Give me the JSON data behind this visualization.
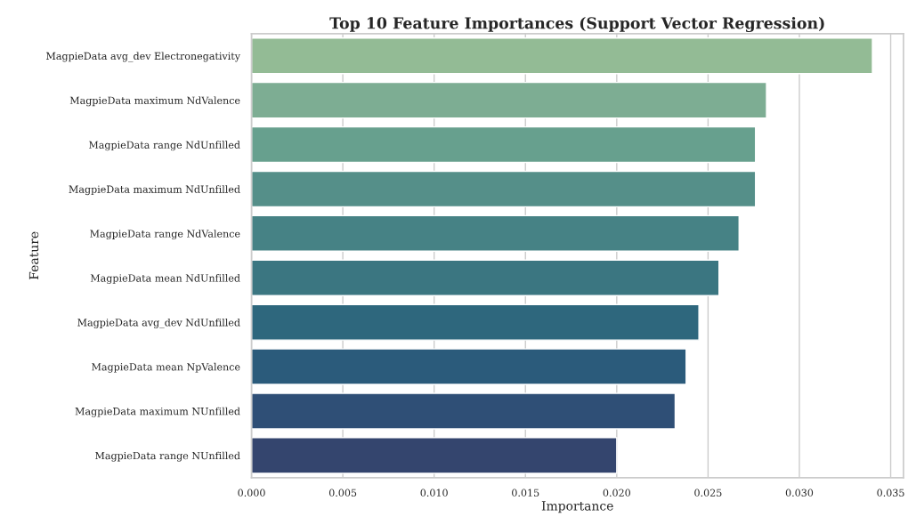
{
  "chart_data": {
    "type": "bar",
    "orientation": "horizontal",
    "title": "Top 10 Feature Importances (Support Vector Regression)",
    "xlabel": "Importance",
    "ylabel": "Feature",
    "categories": [
      "MagpieData avg_dev Electronegativity",
      "MagpieData maximum NdValence",
      "MagpieData range NdUnfilled",
      "MagpieData maximum NdUnfilled",
      "MagpieData range NdValence",
      "MagpieData mean NdUnfilled",
      "MagpieData avg_dev NdUnfilled",
      "MagpieData mean NpValence",
      "MagpieData maximum NUnfilled",
      "MagpieData range NUnfilled"
    ],
    "values": [
      0.034,
      0.0282,
      0.0276,
      0.0276,
      0.0267,
      0.0256,
      0.0245,
      0.0238,
      0.0232,
      0.02
    ],
    "colors": [
      "#93bb95",
      "#7dad93",
      "#67a08e",
      "#558f89",
      "#468285",
      "#3b7681",
      "#2e677d",
      "#2b5b7b",
      "#2f4f76",
      "#34456e"
    ],
    "xlim": [
      0,
      0.0357
    ],
    "xticks": [
      {
        "value": 0,
        "label": "0.000"
      },
      {
        "value": 0.005,
        "label": "0.005"
      },
      {
        "value": 0.01,
        "label": "0.010"
      },
      {
        "value": 0.015,
        "label": "0.015"
      },
      {
        "value": 0.02,
        "label": "0.020"
      },
      {
        "value": 0.025,
        "label": "0.025"
      },
      {
        "value": 0.03,
        "label": "0.030"
      },
      {
        "value": 0.035,
        "label": "0.035"
      }
    ],
    "grid": "x"
  }
}
